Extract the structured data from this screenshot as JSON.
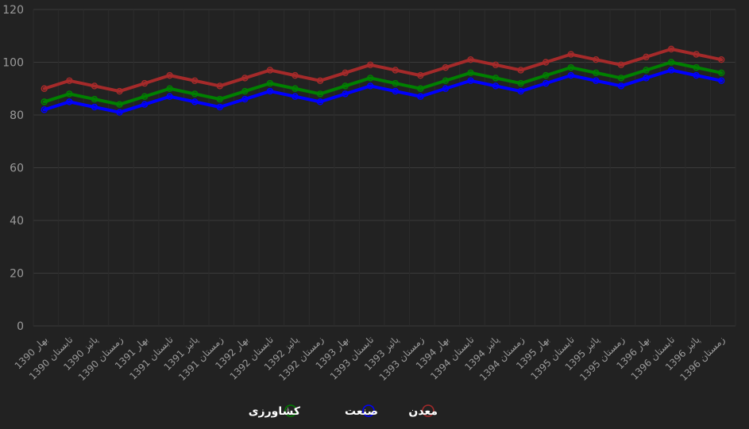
{
  "chart_data": {
    "type": "line",
    "title": "",
    "xlabel": "",
    "ylabel": "",
    "ylim": [
      0,
      120
    ],
    "yticks": [
      0,
      20,
      40,
      60,
      80,
      100,
      120
    ],
    "grid": true,
    "legend_position": "bottom-center",
    "categories": [
      "بهار 1390",
      "تابستان 1390",
      "پائیز 1390",
      "زمستان 1390",
      "بهار 1391",
      "تابستان 1391",
      "پائیز 1391",
      "زمستان 1391",
      "بهار 1392",
      "تابستان 1392",
      "پائیز 1392",
      "زمستان 1392",
      "بهار 1393",
      "تابستان 1393",
      "پائیز 1393",
      "زمستان 1393",
      "بهار 1394",
      "تابستان 1394",
      "پائیز 1394",
      "زمستان 1394",
      "بهار 1395",
      "تابستان 1395",
      "پائیز 1395",
      "زمستان 1395",
      "بهار 1396",
      "تابستان 1396",
      "پائیز 1396",
      "زمستان 1396"
    ],
    "series": [
      {
        "name": "کشاورزی",
        "color": "#008000",
        "values": [
          85,
          88,
          86,
          84,
          87,
          90,
          88,
          86,
          89,
          92,
          90,
          88,
          91,
          94,
          92,
          90,
          93,
          96,
          94,
          92,
          95,
          98,
          96,
          94,
          97,
          100,
          98,
          96
        ]
      },
      {
        "name": "صنعت",
        "color": "#0000ff",
        "values": [
          82,
          85,
          83,
          81,
          84,
          87,
          85,
          83,
          86,
          89,
          87,
          85,
          88,
          91,
          89,
          87,
          90,
          93,
          91,
          89,
          92,
          95,
          93,
          91,
          94,
          97,
          95,
          93
        ]
      },
      {
        "name": "معدن",
        "color": "#a52a2a",
        "values": [
          90,
          93,
          91,
          89,
          92,
          95,
          93,
          91,
          94,
          97,
          95,
          93,
          96,
          99,
          97,
          95,
          98,
          101,
          99,
          97,
          100,
          103,
          101,
          99,
          102,
          105,
          103,
          101
        ]
      }
    ]
  }
}
